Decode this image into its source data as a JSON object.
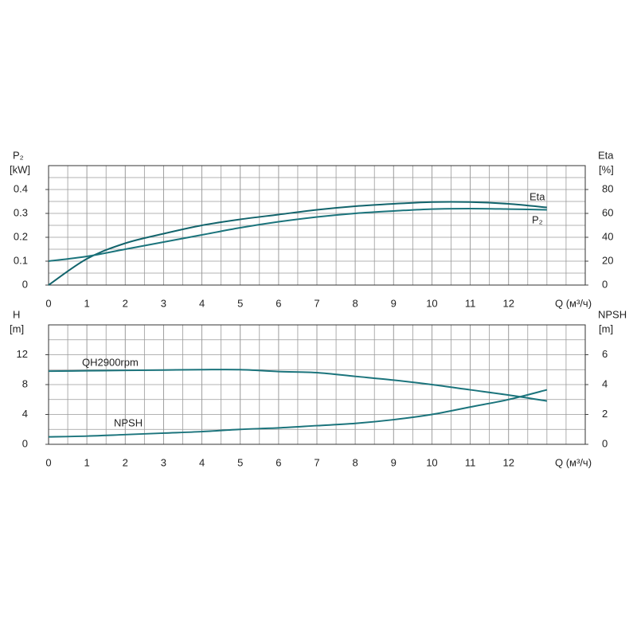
{
  "chart_data": [
    {
      "type": "line",
      "x": [
        0,
        1,
        2,
        3,
        4,
        5,
        6,
        7,
        8,
        9,
        10,
        11,
        12,
        13
      ],
      "xlim": [
        0,
        14
      ],
      "xticks": [
        0,
        1,
        2,
        3,
        4,
        5,
        6,
        7,
        8,
        9,
        10,
        11,
        12
      ],
      "xlabel": "Q (м³/ч)",
      "ylabel": "P₂",
      "yunit": "[kW]",
      "ylim": [
        0,
        0.5
      ],
      "yticks": [
        0,
        0.1,
        0.2,
        0.3,
        0.4
      ],
      "y2label": "Eta",
      "y2unit": "[%]",
      "y2lim": [
        0,
        100
      ],
      "y2ticks": [
        0,
        20,
        40,
        60,
        80
      ],
      "grid": true,
      "series": [
        {
          "name": "Eta",
          "color": "#12646c",
          "axis": "y2",
          "values": [
            0,
            22,
            35,
            43,
            50,
            55,
            59,
            63,
            66,
            68,
            69.5,
            69.5,
            68,
            65
          ]
        },
        {
          "name": "P₂",
          "color": "#1b747c",
          "values": [
            0.1,
            0.12,
            0.15,
            0.18,
            0.21,
            0.24,
            0.265,
            0.285,
            0.3,
            0.31,
            0.318,
            0.32,
            0.318,
            0.315
          ]
        }
      ]
    },
    {
      "type": "line",
      "x": [
        0,
        1,
        2,
        3,
        4,
        5,
        6,
        7,
        8,
        9,
        10,
        11,
        12,
        13
      ],
      "xlim": [
        0,
        14
      ],
      "xticks": [
        0,
        1,
        2,
        3,
        4,
        5,
        6,
        7,
        8,
        9,
        10,
        11,
        12
      ],
      "xlabel": "Q (м³/ч)",
      "ylabel": "H",
      "yunit": "[m]",
      "ylim": [
        0,
        16
      ],
      "yticks": [
        0,
        4,
        8,
        12
      ],
      "y2label": "NPSH",
      "y2unit": "[m]",
      "y2lim": [
        0,
        8
      ],
      "y2ticks": [
        0,
        2,
        4,
        6
      ],
      "grid": true,
      "series": [
        {
          "name": "QH2900rpm",
          "color": "#1b747c",
          "values": [
            9.8,
            9.85,
            9.9,
            9.95,
            10,
            10,
            9.75,
            9.6,
            9.1,
            8.6,
            8,
            7.3,
            6.6,
            5.8
          ]
        },
        {
          "name": "NPSH",
          "color": "#1b747c",
          "axis": "y2",
          "values": [
            0.5,
            0.55,
            0.65,
            0.75,
            0.85,
            1,
            1.1,
            1.25,
            1.4,
            1.65,
            2,
            2.5,
            3,
            3.65
          ]
        }
      ]
    }
  ]
}
